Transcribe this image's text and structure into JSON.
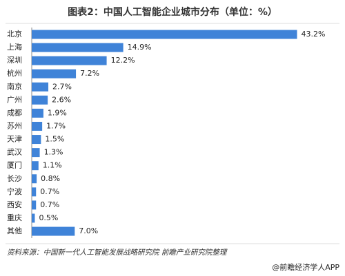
{
  "chart_data": {
    "type": "bar",
    "orientation": "horizontal",
    "title": "图表2：中国人工智能企业城市分布（单位：%）",
    "categories": [
      "北京",
      "上海",
      "深圳",
      "杭州",
      "南京",
      "广州",
      "成都",
      "苏州",
      "天津",
      "武汉",
      "厦门",
      "长沙",
      "宁波",
      "西安",
      "重庆",
      "其他"
    ],
    "values": [
      43.2,
      14.9,
      12.2,
      7.2,
      2.7,
      2.6,
      1.9,
      1.7,
      1.5,
      1.3,
      1.1,
      0.8,
      0.7,
      0.7,
      0.5,
      7.0
    ],
    "value_labels": [
      "43.2%",
      "14.9%",
      "12.2%",
      "7.2%",
      "2.7%",
      "2.6%",
      "1.9%",
      "1.7%",
      "1.5%",
      "1.3%",
      "1.1%",
      "0.8%",
      "0.7%",
      "0.7%",
      "0.5%",
      "7.0%"
    ],
    "color": "#3f83d8",
    "source": "资料来源：中国新一代人工智能发展战略研究院 前瞻产业研究院整理",
    "footer": "@前瞻经济学人APP"
  }
}
